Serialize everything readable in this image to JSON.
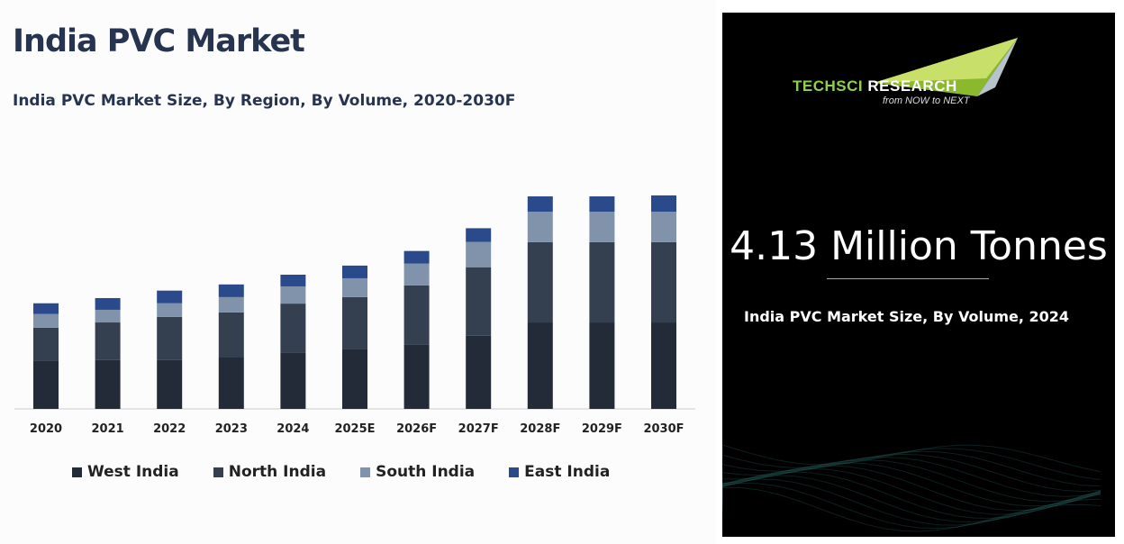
{
  "title": "India PVC Market",
  "subtitle": "India PVC Market Size, By Region, By Volume, 2020-2030F",
  "chart_data": {
    "type": "bar",
    "stacked": true,
    "title": "India PVC Market Size, By Region, By Volume, 2020-2030F",
    "unit": "Million Tonnes",
    "categories": [
      "2020",
      "2021",
      "2022",
      "2023",
      "2024",
      "2025E",
      "2026F",
      "2027F",
      "2028F",
      "2029F",
      "2030F"
    ],
    "series": [
      {
        "name": "West India",
        "color": "#232b38",
        "values": [
          1.47,
          1.5,
          1.5,
          1.58,
          1.72,
          1.83,
          1.97,
          2.25,
          2.66,
          2.66,
          2.66
        ]
      },
      {
        "name": "North India",
        "color": "#343f50",
        "values": [
          1.03,
          1.16,
          1.33,
          1.39,
          1.52,
          1.61,
          1.83,
          2.11,
          2.47,
          2.47,
          2.47
        ]
      },
      {
        "name": "South India",
        "color": "#8093ab",
        "values": [
          0.42,
          0.39,
          0.42,
          0.47,
          0.53,
          0.58,
          0.67,
          0.78,
          0.94,
          0.94,
          0.94
        ]
      },
      {
        "name": "East India",
        "color": "#2a4a8c",
        "values": [
          0.33,
          0.36,
          0.39,
          0.39,
          0.36,
          0.39,
          0.39,
          0.42,
          0.47,
          0.47,
          0.5
        ]
      }
    ],
    "legend": "bottom",
    "grid": false,
    "y_axis_shown": false
  },
  "panel": {
    "brand_part1": "TechSci",
    "brand_part2": "Research",
    "tagline": "from NOW to NEXT",
    "headline": "4.13 Million Tonnes",
    "caption": "India PVC  Market Size, By Volume, 2024"
  }
}
